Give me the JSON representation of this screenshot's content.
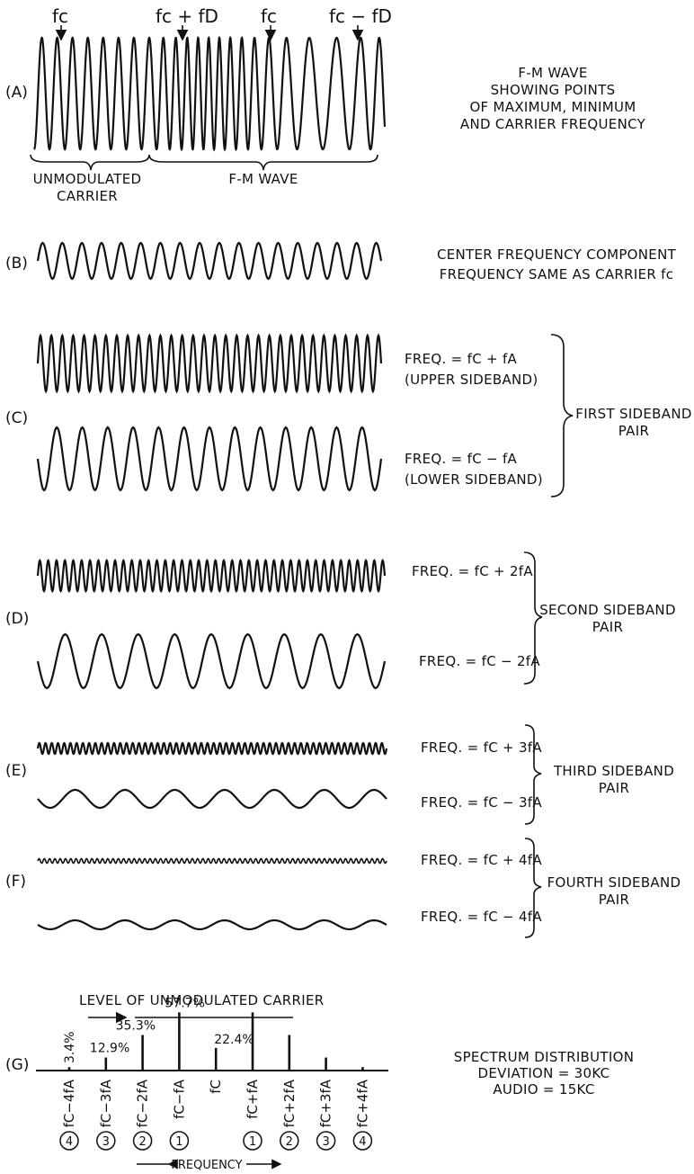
{
  "panels": {
    "A": {
      "label": "(A)",
      "markers": [
        "fc",
        "fc + fD",
        "fc",
        "fc − fD"
      ],
      "brace_left": [
        "UNMODULATED",
        "CARRIER"
      ],
      "brace_right": "F-M WAVE",
      "caption": [
        "F-M WAVE",
        "SHOWING POINTS",
        "OF MAXIMUM, MINIMUM",
        "AND CARRIER FREQUENCY"
      ]
    },
    "B": {
      "label": "(B)",
      "caption_line1": "CENTER FREQUENCY COMPONENT",
      "caption_line2": "FREQUENCY SAME AS CARRIER fc"
    },
    "C": {
      "label": "(C)",
      "upper": [
        "FREQ. = fC + fA",
        "(UPPER SIDEBAND)"
      ],
      "lower": [
        "FREQ. = fC − fA",
        "(LOWER SIDEBAND)"
      ],
      "group": [
        "FIRST SIDEBAND",
        "PAIR"
      ]
    },
    "D": {
      "label": "(D)",
      "upper": "FREQ. = fC + 2fA",
      "lower": "FREQ. = fC − 2fA",
      "group": [
        "SECOND SIDEBAND",
        "PAIR"
      ]
    },
    "E": {
      "label": "(E)",
      "upper": "FREQ. = fC + 3fA",
      "lower": "FREQ. = fC − 3fA",
      "group": [
        "THIRD SIDEBAND",
        "PAIR"
      ]
    },
    "F": {
      "label": "(F)",
      "upper": "FREQ. = fC + 4fA",
      "lower": "FREQ. = fC − 4fA",
      "group": [
        "FOURTH SIDEBAND",
        "PAIR"
      ]
    },
    "G": {
      "label": "(G)",
      "level_label": "LEVEL OF UNMODULATED CARRIER",
      "caption": [
        "SPECTRUM DISTRIBUTION",
        "DEVIATION = 30KC",
        "AUDIO = 15KC"
      ],
      "axis_label": "FREQUENCY",
      "lines": [
        {
          "name": "fC−4fA",
          "order": "4",
          "value": 3.4,
          "label": "3.4%"
        },
        {
          "name": "fC−3fA",
          "order": "3",
          "value": 12.9,
          "label": "12.9%"
        },
        {
          "name": "fC−2fA",
          "order": "2",
          "value": 35.3,
          "label": "35.3%"
        },
        {
          "name": "fC−fA",
          "order": "1",
          "value": 57.7,
          "label": "57.7%"
        },
        {
          "name": "fC",
          "order": "",
          "value": 22.4,
          "label": "22.4%"
        },
        {
          "name": "fC+fA",
          "order": "1",
          "value": 57.7,
          "label": ""
        },
        {
          "name": "fC+2fA",
          "order": "2",
          "value": 35.3,
          "label": ""
        },
        {
          "name": "fC+3fA",
          "order": "3",
          "value": 12.9,
          "label": ""
        },
        {
          "name": "fC+4fA",
          "order": "4",
          "value": 3.4,
          "label": ""
        }
      ]
    }
  }
}
